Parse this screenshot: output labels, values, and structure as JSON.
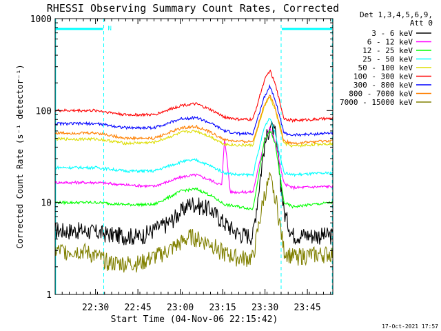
{
  "chart_data": {
    "type": "line",
    "title": "RHESSI Observing Summary Count Rates, Corrected",
    "xlabel": "Start Time (04-Nov-06 22:15:42)",
    "ylabel": "Corrected Count Rate (s⁻¹ detector⁻¹)",
    "yscale": "log",
    "ylim": [
      1,
      1000
    ],
    "xlim": [
      "22:15:42",
      "23:54:00"
    ],
    "x_ticks": [
      "22:30",
      "22:45",
      "23:00",
      "23:15",
      "23:30",
      "23:45"
    ],
    "x_ticks_minutes": [
      14.3,
      29.3,
      44.3,
      59.3,
      74.3,
      89.3
    ],
    "y_ticks": [
      {
        "label": "1",
        "value": 1
      },
      {
        "label": "10",
        "value": 10
      },
      {
        "label": "100",
        "value": 100
      },
      {
        "label": "1000",
        "value": 1000
      }
    ],
    "legend_header": [
      "Det 1,3,4,5,6,9,",
      "Att 0"
    ],
    "legend_position": "right",
    "timestamp": "17-Oct-2021 17:57",
    "annotations": [
      {
        "label": "N",
        "type": "night"
      }
    ],
    "series": [
      {
        "name": "3 - 6 keV",
        "color": "#000000",
        "points": [
          [
            0,
            5
          ],
          [
            10,
            5
          ],
          [
            20,
            4.5
          ],
          [
            30,
            4.3
          ],
          [
            40,
            6
          ],
          [
            48,
            10
          ],
          [
            55,
            8.5
          ],
          [
            60,
            6
          ],
          [
            65,
            4.6
          ],
          [
            70,
            4.4
          ],
          [
            74,
            40
          ],
          [
            76,
            70
          ],
          [
            78,
            55
          ],
          [
            81,
            8
          ],
          [
            84,
            4.5
          ],
          [
            98,
            4.4
          ]
        ]
      },
      {
        "name": "6 - 12 keV",
        "color": "#ff00ff",
        "points": [
          [
            0,
            16.5
          ],
          [
            15,
            16.5
          ],
          [
            25,
            15.5
          ],
          [
            35,
            15
          ],
          [
            45,
            19
          ],
          [
            50,
            20
          ],
          [
            55,
            17.5
          ],
          [
            59,
            15.5
          ],
          [
            60,
            52
          ],
          [
            62,
            13
          ],
          [
            70,
            13
          ],
          [
            74,
            45
          ],
          [
            76,
            65
          ],
          [
            78,
            45
          ],
          [
            81,
            16
          ],
          [
            84,
            14.5
          ],
          [
            98,
            15
          ]
        ]
      },
      {
        "name": "12 - 25 keV",
        "color": "#00ff00",
        "points": [
          [
            0,
            10
          ],
          [
            15,
            10
          ],
          [
            25,
            9.5
          ],
          [
            35,
            9.5
          ],
          [
            45,
            13.5
          ],
          [
            50,
            14
          ],
          [
            55,
            12
          ],
          [
            60,
            9.5
          ],
          [
            65,
            9
          ],
          [
            70,
            8.5
          ],
          [
            74,
            45
          ],
          [
            76,
            62
          ],
          [
            78,
            42
          ],
          [
            81,
            10
          ],
          [
            84,
            9
          ],
          [
            98,
            10
          ]
        ]
      },
      {
        "name": "25 - 50 keV",
        "color": "#00ffff",
        "points": [
          [
            0,
            24
          ],
          [
            15,
            24
          ],
          [
            25,
            22
          ],
          [
            35,
            22
          ],
          [
            45,
            28
          ],
          [
            50,
            29
          ],
          [
            55,
            25
          ],
          [
            60,
            21
          ],
          [
            65,
            20
          ],
          [
            70,
            20
          ],
          [
            74,
            65
          ],
          [
            76,
            85
          ],
          [
            78,
            55
          ],
          [
            81,
            21
          ],
          [
            84,
            20
          ],
          [
            98,
            21
          ]
        ]
      },
      {
        "name": "50 - 100 keV",
        "color": "#dddd00",
        "points": [
          [
            0,
            49
          ],
          [
            15,
            49
          ],
          [
            25,
            44
          ],
          [
            35,
            45
          ],
          [
            45,
            58
          ],
          [
            50,
            60
          ],
          [
            55,
            52
          ],
          [
            60,
            43
          ],
          [
            65,
            42
          ],
          [
            70,
            42
          ],
          [
            74,
            110
          ],
          [
            76,
            140
          ],
          [
            78,
            100
          ],
          [
            81,
            44
          ],
          [
            84,
            41
          ],
          [
            98,
            44
          ]
        ]
      },
      {
        "name": "100 - 300 keV",
        "color": "#ff0000",
        "points": [
          [
            0,
            100
          ],
          [
            15,
            100
          ],
          [
            25,
            90
          ],
          [
            35,
            90
          ],
          [
            45,
            115
          ],
          [
            50,
            118
          ],
          [
            55,
            102
          ],
          [
            60,
            85
          ],
          [
            65,
            80
          ],
          [
            70,
            80
          ],
          [
            74,
            210
          ],
          [
            76,
            275
          ],
          [
            78,
            190
          ],
          [
            81,
            82
          ],
          [
            84,
            78
          ],
          [
            98,
            82
          ]
        ]
      },
      {
        "name": "300 - 800 keV",
        "color": "#0000ff",
        "points": [
          [
            0,
            72
          ],
          [
            15,
            72
          ],
          [
            25,
            65
          ],
          [
            35,
            65
          ],
          [
            45,
            82
          ],
          [
            50,
            84
          ],
          [
            55,
            73
          ],
          [
            60,
            60
          ],
          [
            65,
            56
          ],
          [
            70,
            56
          ],
          [
            74,
            140
          ],
          [
            76,
            185
          ],
          [
            78,
            130
          ],
          [
            81,
            57
          ],
          [
            84,
            54
          ],
          [
            98,
            57
          ]
        ]
      },
      {
        "name": "800 - 7000 keV",
        "color": "#ff8000",
        "points": [
          [
            0,
            57
          ],
          [
            15,
            57
          ],
          [
            25,
            50
          ],
          [
            35,
            50
          ],
          [
            45,
            65
          ],
          [
            50,
            67
          ],
          [
            55,
            58
          ],
          [
            60,
            48
          ],
          [
            65,
            46
          ],
          [
            70,
            46
          ],
          [
            74,
            115
          ],
          [
            76,
            150
          ],
          [
            78,
            105
          ],
          [
            81,
            47
          ],
          [
            84,
            44
          ],
          [
            98,
            47
          ]
        ]
      },
      {
        "name": "7000 - 15000 keV",
        "color": "#808000",
        "points": [
          [
            0,
            3
          ],
          [
            10,
            3
          ],
          [
            20,
            2.2
          ],
          [
            30,
            2.2
          ],
          [
            40,
            3
          ],
          [
            48,
            4.3
          ],
          [
            55,
            3.6
          ],
          [
            60,
            2.8
          ],
          [
            65,
            2.5
          ],
          [
            70,
            2.5
          ],
          [
            74,
            12
          ],
          [
            76,
            18
          ],
          [
            78,
            12
          ],
          [
            81,
            3
          ],
          [
            84,
            2.6
          ],
          [
            98,
            2.8
          ]
        ]
      }
    ]
  }
}
